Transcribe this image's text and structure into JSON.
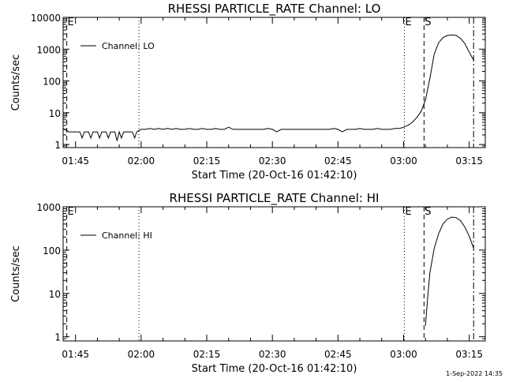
{
  "footer": {
    "timestamp": "1-Sep-2022 14:35"
  },
  "chart_data": [
    {
      "type": "line",
      "title": "RHESSI PARTICLE_RATE Channel: LO",
      "xlabel": "Start Time (20-Oct-16 01:42:10)",
      "ylabel": "Counts/sec",
      "yscale": "log",
      "xlim_minutes_after_start": [
        0,
        96.5
      ],
      "ylim": [
        0.8,
        10000
      ],
      "x_ticks": [
        "01:45",
        "02:00",
        "02:15",
        "02:30",
        "02:45",
        "03:00",
        "03:15"
      ],
      "y_ticks": [
        "1",
        "10",
        "100",
        "1000",
        "10000"
      ],
      "legend": {
        "position": "top-left",
        "entries": [
          "Channel: LO"
        ]
      },
      "flag_markers": [
        {
          "label": "E",
          "time": "01:43:00",
          "style": "dashed"
        },
        {
          "label": "E",
          "time": "03:00:10",
          "style": "solid"
        },
        {
          "label": "S",
          "time": "03:04:40",
          "style": "dashed"
        }
      ],
      "vertical_lines": [
        {
          "time": "01:43:00",
          "style": "dashed"
        },
        {
          "time": "01:59:30",
          "style": "dotted"
        },
        {
          "time": "03:00:10",
          "style": "dotted"
        },
        {
          "time": "03:04:40",
          "style": "dashed"
        },
        {
          "time": "03:16:00",
          "style": "dash-dot"
        }
      ],
      "series": [
        {
          "name": "Channel: LO",
          "x_time": [
            "01:42:10",
            "01:43:30",
            "01:45:00",
            "01:46:00",
            "01:46:30",
            "01:47:00",
            "01:48:00",
            "01:48:30",
            "01:49:00",
            "01:50:00",
            "01:50:30",
            "01:51:00",
            "01:52:00",
            "01:52:30",
            "01:53:00",
            "01:54:00",
            "01:54:30",
            "01:55:00",
            "01:55:30",
            "01:56:00",
            "01:57:00",
            "01:58:00",
            "01:58:30",
            "01:59:00",
            "02:00:00",
            "02:01:00",
            "02:02:00",
            "02:03:00",
            "02:04:00",
            "02:05:00",
            "02:06:00",
            "02:07:00",
            "02:08:00",
            "02:09:00",
            "02:10:00",
            "02:11:00",
            "02:12:00",
            "02:13:00",
            "02:14:00",
            "02:15:00",
            "02:16:00",
            "02:17:00",
            "02:18:00",
            "02:19:00",
            "02:20:00",
            "02:21:00",
            "02:22:00",
            "02:23:00",
            "02:24:00",
            "02:25:00",
            "02:26:00",
            "02:27:00",
            "02:28:00",
            "02:29:00",
            "02:30:00",
            "02:31:00",
            "02:32:00",
            "02:33:00",
            "02:34:00",
            "02:35:00",
            "02:36:00",
            "02:37:00",
            "02:38:00",
            "02:39:00",
            "02:40:00",
            "02:41:00",
            "02:42:00",
            "02:43:00",
            "02:44:00",
            "02:45:00",
            "02:46:00",
            "02:47:00",
            "02:48:00",
            "02:49:00",
            "02:50:00",
            "02:51:00",
            "02:52:00",
            "02:53:00",
            "02:54:00",
            "02:55:00",
            "02:56:00",
            "02:57:00",
            "02:58:00",
            "02:59:00",
            "03:00:00",
            "03:01:00",
            "03:02:00",
            "03:03:00",
            "03:04:00",
            "03:05:00",
            "03:06:00",
            "03:07:00",
            "03:08:00",
            "03:09:00",
            "03:10:00",
            "03:11:00",
            "03:12:00",
            "03:13:00",
            "03:14:00",
            "03:15:00",
            "03:16:00"
          ],
          "values": [
            3.2,
            2.5,
            2.5,
            2.5,
            1.6,
            2.5,
            2.5,
            1.6,
            2.5,
            2.5,
            1.6,
            2.5,
            2.5,
            1.6,
            2.5,
            2.5,
            1.3,
            2.5,
            1.6,
            2.5,
            2.5,
            2.5,
            1.6,
            2.5,
            3.0,
            3.0,
            3.2,
            3.0,
            3.2,
            3.0,
            3.2,
            3.0,
            3.2,
            3.0,
            3.0,
            3.2,
            3.0,
            3.0,
            3.2,
            3.0,
            3.0,
            3.2,
            3.0,
            3.0,
            3.5,
            3.0,
            3.0,
            3.0,
            3.0,
            3.0,
            3.0,
            3.0,
            3.0,
            3.2,
            3.0,
            2.5,
            3.0,
            3.0,
            3.0,
            3.0,
            3.0,
            3.0,
            3.0,
            3.0,
            3.0,
            3.0,
            3.0,
            3.0,
            3.2,
            3.0,
            2.5,
            3.0,
            3.0,
            3.0,
            3.2,
            3.0,
            3.0,
            3.0,
            3.2,
            3.0,
            3.0,
            3.0,
            3.2,
            3.2,
            3.5,
            4.0,
            5.0,
            7.0,
            11.0,
            25.0,
            120.0,
            700.0,
            1600.0,
            2300.0,
            2700.0,
            2800.0,
            2700.0,
            2200.0,
            1500.0,
            800.0,
            450.0
          ]
        }
      ]
    },
    {
      "type": "line",
      "title": "RHESSI PARTICLE_RATE Channel: HI",
      "xlabel": "Start Time (20-Oct-16 01:42:10)",
      "ylabel": "Counts/sec",
      "yscale": "log",
      "xlim_minutes_after_start": [
        0,
        96.5
      ],
      "ylim": [
        0.8,
        1000
      ],
      "x_ticks": [
        "01:45",
        "02:00",
        "02:15",
        "02:30",
        "02:45",
        "03:00",
        "03:15"
      ],
      "y_ticks": [
        "1",
        "10",
        "100",
        "1000"
      ],
      "legend": {
        "position": "top-left",
        "entries": [
          "Channel: HI"
        ]
      },
      "flag_markers": [
        {
          "label": "E",
          "time": "01:43:00",
          "style": "dashed"
        },
        {
          "label": "E",
          "time": "03:00:10",
          "style": "solid"
        },
        {
          "label": "S",
          "time": "03:04:40",
          "style": "dashed"
        }
      ],
      "vertical_lines": [
        {
          "time": "01:43:00",
          "style": "dashed"
        },
        {
          "time": "01:59:30",
          "style": "dotted"
        },
        {
          "time": "03:00:10",
          "style": "dotted"
        },
        {
          "time": "03:04:40",
          "style": "dashed"
        },
        {
          "time": "03:16:00",
          "style": "dash-dot"
        }
      ],
      "series": [
        {
          "name": "Channel: HI",
          "x_time": [
            "03:05:00",
            "03:05:30",
            "03:06:00",
            "03:07:00",
            "03:08:00",
            "03:09:00",
            "03:10:00",
            "03:11:00",
            "03:12:00",
            "03:13:00",
            "03:14:00",
            "03:15:00",
            "03:16:00"
          ],
          "values": [
            1.8,
            8.0,
            30.0,
            110.0,
            240.0,
            400.0,
            520.0,
            580.0,
            560.0,
            480.0,
            340.0,
            210.0,
            110.0
          ]
        }
      ]
    }
  ]
}
